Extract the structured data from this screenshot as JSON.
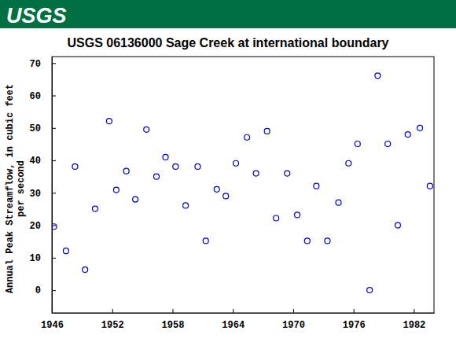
{
  "header": {
    "logo": "USGS"
  },
  "chart_data": {
    "type": "scatter",
    "title": "USGS 06136000 Sage Creek at international boundary",
    "y_label": "Annual Peak Streamflow, in cubic feet per second",
    "x": [
      1946.2,
      1947.4,
      1948.3,
      1949.3,
      1950.3,
      1951.7,
      1952.4,
      1953.4,
      1954.3,
      1955.4,
      1956.4,
      1957.3,
      1958.3,
      1959.3,
      1960.5,
      1961.3,
      1962.4,
      1963.3,
      1964.3,
      1965.4,
      1966.3,
      1967.4,
      1968.3,
      1969.4,
      1970.4,
      1971.4,
      1972.3,
      1973.4,
      1974.5,
      1975.5,
      1976.4,
      1977.6,
      1978.4,
      1979.4,
      1980.4,
      1981.4,
      1982.6,
      1983.6
    ],
    "values": [
      19.6,
      12.1,
      38.1,
      6.3,
      25.1,
      52.1,
      30.9,
      36.7,
      28,
      49.5,
      35,
      41,
      38.1,
      26.1,
      38.1,
      15.2,
      31.1,
      29,
      39.1,
      47.1,
      36,
      49,
      22.2,
      36,
      23.2,
      15.2,
      32.1,
      15.2,
      27,
      39.1,
      45.1,
      0,
      66.1,
      45.1,
      20,
      48,
      50,
      32.1
    ],
    "color": "#0000cc",
    "marker": "open-circle",
    "xlim": [
      1946,
      1984
    ],
    "xticks": [
      1946,
      1952,
      1958,
      1964,
      1970,
      1976,
      1982
    ],
    "ylim": [
      -7,
      72
    ],
    "yticks": [
      0,
      10,
      20,
      30,
      40,
      50,
      60,
      70
    ],
    "grid": false
  }
}
